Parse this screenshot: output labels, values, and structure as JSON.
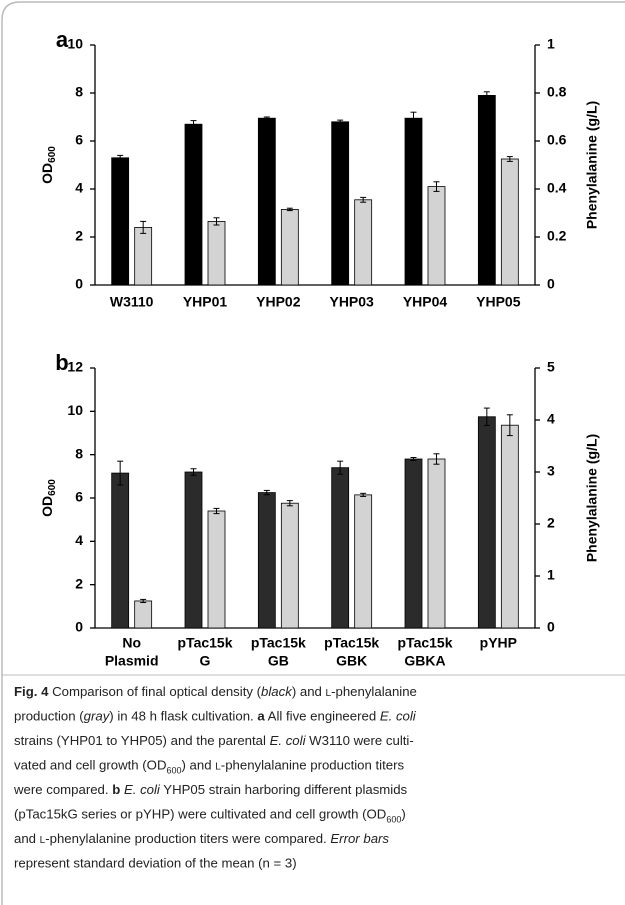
{
  "chart_data": [
    {
      "type": "bar",
      "label": "a",
      "categories": [
        "W3110",
        "YHP01",
        "YHP02",
        "YHP03",
        "YHP04",
        "YHP05"
      ],
      "ylabel": [
        "OD",
        "600"
      ],
      "y2label": "Phenylalanine (g/L)",
      "ylim": [
        0,
        10
      ],
      "yticks": [
        0,
        2,
        4,
        6,
        8,
        10
      ],
      "y2lim": [
        0,
        1
      ],
      "y2ticks": [
        0,
        0.2,
        0.4,
        0.6,
        0.8,
        1
      ],
      "series": [
        {
          "color": "#000000",
          "values": [
            5.3,
            6.7,
            6.95,
            6.8,
            6.95,
            7.9
          ],
          "errors": [
            0.1,
            0.15,
            0.05,
            0.07,
            0.25,
            0.15
          ]
        },
        {
          "color": "#d3d3d3",
          "axis": "y2",
          "values": [
            0.24,
            0.265,
            0.315,
            0.355,
            0.41,
            0.525
          ],
          "errors": [
            0.025,
            0.015,
            0.005,
            0.01,
            0.02,
            0.01
          ]
        }
      ]
    },
    {
      "type": "bar",
      "label": "b",
      "categories": [
        [
          "No",
          "Plasmid"
        ],
        [
          "pTac15k",
          "G"
        ],
        [
          "pTac15k",
          "GB"
        ],
        [
          "pTac15k",
          "GBK"
        ],
        [
          "pTac15k",
          "GBKA"
        ],
        [
          "pYHP"
        ]
      ],
      "ylabel": [
        "OD",
        "600"
      ],
      "y2label": "Phenylalanine (g/L)",
      "ylim": [
        0,
        12
      ],
      "yticks": [
        0,
        2,
        4,
        6,
        8,
        10,
        12
      ],
      "y2lim": [
        0,
        5
      ],
      "y2ticks": [
        0,
        1,
        2,
        3,
        4,
        5
      ],
      "series": [
        {
          "color": "#2b2b2b",
          "values": [
            7.15,
            7.2,
            6.25,
            7.4,
            7.8,
            9.75
          ],
          "errors": [
            0.55,
            0.15,
            0.1,
            0.3,
            0.07,
            0.4
          ]
        },
        {
          "color": "#d3d3d3",
          "axis": "y2",
          "values": [
            0.52,
            2.25,
            2.4,
            2.56,
            3.25,
            3.9
          ],
          "errors": [
            0.03,
            0.05,
            0.05,
            0.03,
            0.1,
            0.2
          ]
        }
      ]
    }
  ],
  "caption": [
    [
      [
        "Fig. 4",
        "b"
      ],
      [
        "  Comparison of final optical density (",
        ""
      ],
      [
        "black",
        "i"
      ],
      [
        ") and ",
        ""
      ],
      [
        "L",
        "sc"
      ],
      [
        "-phenylalanine",
        ""
      ]
    ],
    [
      [
        "production (",
        ""
      ],
      [
        "gray",
        "i"
      ],
      [
        ") in 48 h flask cultivation. ",
        ""
      ],
      [
        "a",
        "b"
      ],
      [
        " All five engineered ",
        ""
      ],
      [
        "E. coli",
        "i"
      ]
    ],
    [
      [
        "strains (YHP01 to YHP05) and the parental ",
        ""
      ],
      [
        "E. coli",
        "i"
      ],
      [
        " W3110 were culti-",
        ""
      ]
    ],
    [
      [
        "vated and cell growth (OD",
        ""
      ],
      [
        "600",
        "sub"
      ],
      [
        ") and ",
        ""
      ],
      [
        "L",
        "sc"
      ],
      [
        "-phenylalanine production titers",
        ""
      ]
    ],
    [
      [
        "were compared. ",
        ""
      ],
      [
        "b",
        "b"
      ],
      [
        " ",
        ""
      ],
      [
        "E. coli",
        "i"
      ],
      [
        " YHP05 strain harboring different plasmids",
        ""
      ]
    ],
    [
      [
        "(pTac15kG series or pYHP) were cultivated and cell growth (OD",
        ""
      ],
      [
        "600",
        "sub"
      ],
      [
        ")",
        ""
      ]
    ],
    [
      [
        "and ",
        ""
      ],
      [
        "L",
        "sc"
      ],
      [
        "-phenylalanine production titers were compared. ",
        ""
      ],
      [
        "Error bars",
        "i"
      ]
    ],
    [
      [
        "represent standard deviation of the mean (n = 3)",
        ""
      ]
    ]
  ]
}
